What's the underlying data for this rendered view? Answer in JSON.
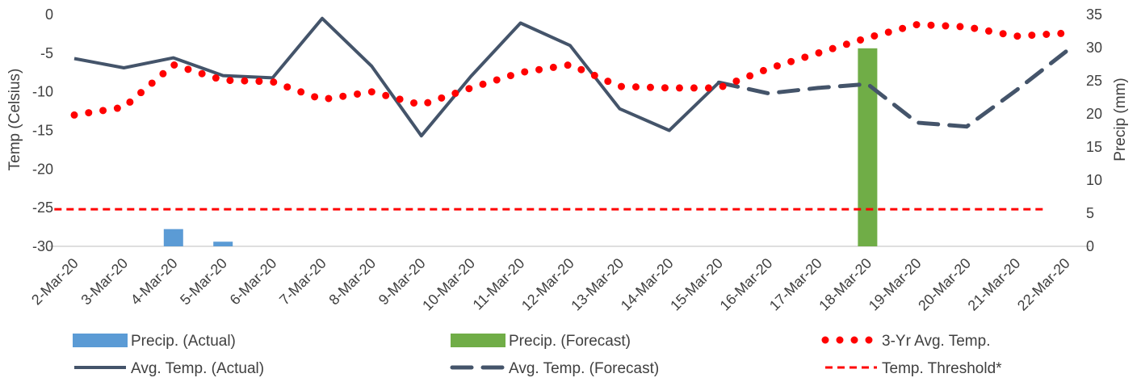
{
  "chart_data": {
    "type": "bar+line",
    "categories": [
      "2-Mar-20",
      "3-Mar-20",
      "4-Mar-20",
      "5-Mar-20",
      "6-Mar-20",
      "7-Mar-20",
      "8-Mar-20",
      "9-Mar-20",
      "10-Mar-20",
      "11-Mar-20",
      "12-Mar-20",
      "13-Mar-20",
      "14-Mar-20",
      "15-Mar-20",
      "16-Mar-20",
      "17-Mar-20",
      "18-Mar-20",
      "19-Mar-20",
      "20-Mar-20",
      "21-Mar-20",
      "22-Mar-20"
    ],
    "ylabel": "Temp (Celsius)",
    "y2label": "Precip (mm)",
    "ylim": [
      -30,
      0
    ],
    "yticks": [
      0,
      -5,
      -10,
      -15,
      -20,
      -25,
      -30
    ],
    "y2lim": [
      0,
      35
    ],
    "y2ticks": [
      35,
      30,
      25,
      20,
      15,
      10,
      5,
      0
    ],
    "grid": false,
    "legend_position": "bottom",
    "series": [
      {
        "name": "Precip. (Actual)",
        "type": "bar",
        "axis": "right",
        "color": "#5b9bd5",
        "values": [
          null,
          null,
          2.6,
          0.7,
          null,
          null,
          null,
          null,
          null,
          null,
          null,
          null,
          null,
          null,
          null,
          null,
          null,
          null,
          null,
          null,
          null
        ]
      },
      {
        "name": "Precip. (Forecast)",
        "type": "bar",
        "axis": "right",
        "color": "#70ad47",
        "values": [
          null,
          null,
          null,
          null,
          null,
          null,
          null,
          null,
          null,
          null,
          null,
          null,
          null,
          null,
          null,
          null,
          29.9,
          null,
          null,
          null,
          null
        ]
      },
      {
        "name": "3-Yr Avg. Temp.",
        "type": "dotted-line",
        "axis": "left",
        "color": "#ff0000",
        "values": [
          -13,
          -12,
          -6.5,
          -8.5,
          -8.7,
          -11,
          -10,
          -11.7,
          -9.5,
          -7.5,
          -6.5,
          -9.3,
          -9.5,
          -9.5,
          -7,
          -5,
          -3,
          -1.3,
          -1.6,
          -2.8,
          -2.4
        ]
      },
      {
        "name": "Avg. Temp. (Actual)",
        "type": "line",
        "axis": "left",
        "color": "#44546a",
        "values": [
          -5.7,
          -6.9,
          -5.6,
          -7.9,
          -8.2,
          -0.5,
          -6.7,
          -15.7,
          -8.0,
          -1.1,
          -4.0,
          -12.2,
          -15.0,
          -8.8,
          null,
          null,
          null,
          null,
          null,
          null,
          null
        ]
      },
      {
        "name": "Avg. Temp. (Forecast)",
        "type": "dashed-line",
        "axis": "left",
        "color": "#44546a",
        "values": [
          null,
          null,
          null,
          null,
          null,
          null,
          null,
          null,
          null,
          null,
          null,
          null,
          null,
          -8.8,
          -10.2,
          -9.5,
          -9.0,
          -14.0,
          -14.5,
          -9.8,
          -4.8
        ]
      },
      {
        "name": "Temp. Threshold*",
        "type": "short-dashed-line",
        "axis": "left",
        "color": "#ff0000",
        "values": [
          -25.2,
          -25.2,
          -25.2,
          -25.2,
          -25.2,
          -25.2,
          -25.2,
          -25.2,
          -25.2,
          -25.2,
          -25.2,
          -25.2,
          -25.2,
          -25.2,
          -25.2,
          -25.2,
          -25.2,
          -25.2,
          -25.2,
          -25.2,
          -25.2
        ]
      }
    ]
  }
}
